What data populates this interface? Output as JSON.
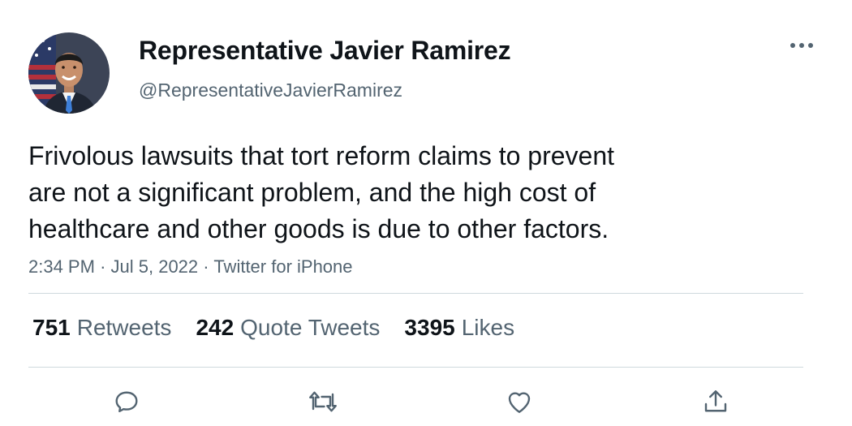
{
  "author": {
    "display_name": "Representative Javier Ramirez",
    "handle": "@RepresentativeJavierRamirez",
    "avatar_icon": "profile-photo"
  },
  "tweet": {
    "text_lines": [
      "Frivolous lawsuits that tort reform claims to prevent",
      "are not a significant problem, and the high cost of",
      "healthcare and other goods is due to other factors."
    ],
    "time": "2:34 PM",
    "separator": "·",
    "date": "Jul 5, 2022",
    "source": "Twitter for iPhone"
  },
  "stats": [
    {
      "count": "751",
      "label": "Retweets"
    },
    {
      "count": "242",
      "label": "Quote Tweets"
    },
    {
      "count": "3395",
      "label": "Likes"
    }
  ],
  "actions": {
    "more_icon": "more-horizontal-icon",
    "reply_icon": "reply-icon",
    "retweet_icon": "retweet-icon",
    "like_icon": "heart-icon",
    "share_icon": "share-icon"
  },
  "colors": {
    "text_primary": "#0f1419",
    "text_secondary": "#536471",
    "divider": "#cfd9de"
  }
}
